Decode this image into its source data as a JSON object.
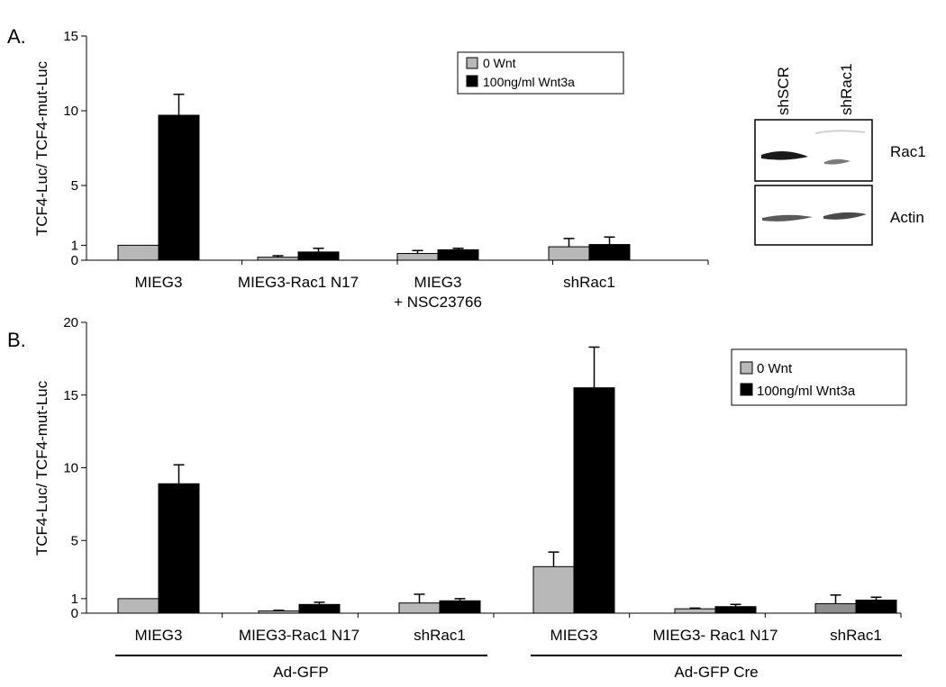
{
  "colors": {
    "no_wnt": "#b8b8b8",
    "no_wnt_dark": "#8e8e8e",
    "wnt3a": "#000000",
    "band": "#333333"
  },
  "panel_a": {
    "label": "A.",
    "ylabel": "TCF4-Luc/ TCF4-mut-Luc",
    "legend": [
      "0 Wnt",
      "100ng/ml Wnt3a"
    ],
    "blot": {
      "lanes": [
        "shSCR",
        "shRac1"
      ],
      "rows": [
        "Rac1",
        "Actin"
      ]
    }
  },
  "panel_b": {
    "label": "B.",
    "ylabel": "TCF4-Luc/ TCF4-mut-Luc",
    "legend": [
      "0 Wnt",
      "100ng/ml Wnt3a"
    ],
    "groups": [
      "Ad-GFP",
      "Ad-GFP Cre"
    ]
  },
  "chart_data": [
    {
      "type": "bar",
      "ylim": [
        0,
        15
      ],
      "yticks": [
        0,
        1,
        5,
        10,
        15
      ],
      "grid": false,
      "legend_position": "top-center",
      "categories": [
        "MIEG3",
        "MIEG3-Rac1 N17",
        "MIEG3\n+ NSC23766",
        "shRac1"
      ],
      "series": [
        {
          "name": "0 Wnt",
          "values": [
            1.0,
            0.2,
            0.45,
            0.9
          ],
          "errors": [
            0,
            0.1,
            0.2,
            0.55
          ]
        },
        {
          "name": "100ng/ml Wnt3a",
          "values": [
            9.7,
            0.55,
            0.7,
            1.05
          ],
          "errors": [
            1.4,
            0.25,
            0.1,
            0.5
          ]
        }
      ]
    },
    {
      "type": "bar",
      "ylim": [
        0,
        20
      ],
      "yticks": [
        0,
        1,
        5,
        10,
        15,
        20
      ],
      "grid": false,
      "legend_position": "top-right",
      "categories": [
        "MIEG3",
        "MIEG3-Rac1 N17",
        "shRac1",
        "MIEG3",
        "MIEG3- Rac1 N17",
        "shRac1"
      ],
      "series": [
        {
          "name": "0 Wnt",
          "values": [
            1.0,
            0.15,
            0.7,
            3.2,
            0.3,
            0.65
          ],
          "errors": [
            0,
            0.05,
            0.6,
            1.0,
            0.05,
            0.6
          ]
        },
        {
          "name": "100ng/ml Wnt3a",
          "values": [
            8.9,
            0.6,
            0.85,
            15.5,
            0.45,
            0.9
          ],
          "errors": [
            1.3,
            0.15,
            0.15,
            2.8,
            0.15,
            0.2
          ]
        }
      ]
    }
  ]
}
